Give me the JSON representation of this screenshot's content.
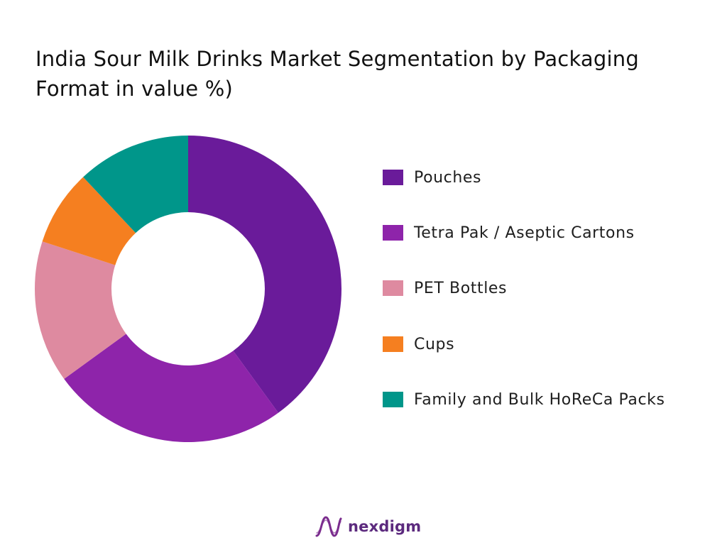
{
  "chart_data": {
    "type": "pie",
    "variant": "donut",
    "title": "India Sour Milk Drinks Market Segmentation by Packaging Format in value %)",
    "categories": [
      "Pouches",
      "Tetra Pak / Aseptic Cartons",
      "PET Bottles",
      "Cups",
      "Family and Bulk HoReCa Packs"
    ],
    "values": [
      40,
      25,
      15,
      8,
      12
    ],
    "unit": "%",
    "colors": [
      "#6a1b9a",
      "#8e24aa",
      "#de8aa0",
      "#f57f20",
      "#00968a"
    ],
    "legend_position": "right"
  },
  "brand": {
    "name": "nexdigm",
    "logo_icon": "nexdigm-wave-logo-icon",
    "logo_color": "#7b2d8e"
  }
}
